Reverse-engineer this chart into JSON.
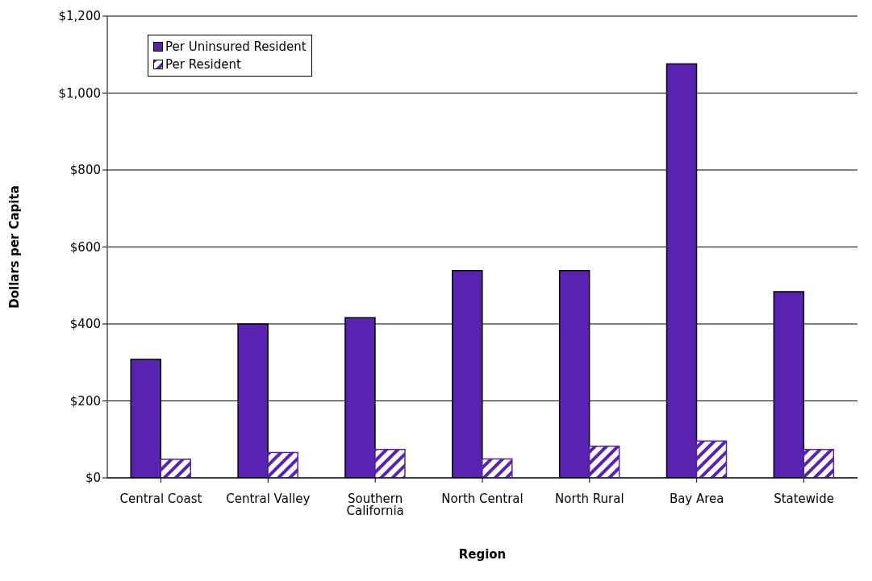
{
  "chart_data": {
    "type": "bar",
    "xlabel": "Region",
    "ylabel": "Dollars per Capita",
    "categories": [
      "Central Coast",
      "Central Valley",
      "Southern California",
      "North Central",
      "North Rural",
      "Bay Area",
      "Statewide"
    ],
    "series": [
      {
        "name": "Per Uninsured Resident",
        "color": "#5a22b0",
        "values": [
          308,
          400,
          416,
          539,
          539,
          1076,
          484
        ]
      },
      {
        "name": "Per Resident",
        "color": "#5a22b0",
        "values": [
          48,
          66,
          74,
          49,
          82,
          96,
          74
        ]
      }
    ],
    "ylim": [
      0,
      1200
    ],
    "yticks": [
      {
        "value": 0,
        "label": "$0"
      },
      {
        "value": 200,
        "label": "$200"
      },
      {
        "value": 400,
        "label": "$400"
      },
      {
        "value": 600,
        "label": "$600"
      },
      {
        "value": 800,
        "label": "$800"
      },
      {
        "value": 1000,
        "label": "$1,000"
      },
      {
        "value": 1200,
        "label": "$1,200"
      }
    ],
    "grid": "y",
    "legend": "top left"
  }
}
